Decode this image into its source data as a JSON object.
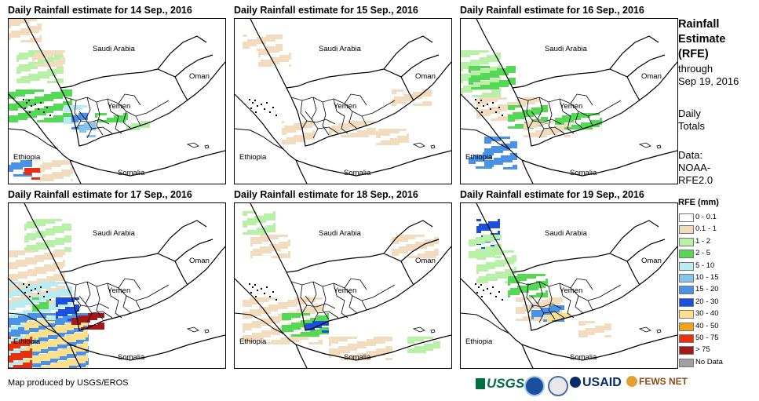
{
  "panels": [
    {
      "title": "Daily Rainfall estimate for 14 Sep., 2016"
    },
    {
      "title": "Daily Rainfall estimate for 15 Sep., 2016"
    },
    {
      "title": "Daily Rainfall estimate for 16 Sep., 2016"
    },
    {
      "title": "Daily Rainfall estimate for 17 Sep., 2016"
    },
    {
      "title": "Daily Rainfall estimate for 18 Sep., 2016"
    },
    {
      "title": "Daily Rainfall estimate for 19 Sep., 2016"
    }
  ],
  "map_labels": {
    "saudi": "Saudi Arabia",
    "oman": "Oman",
    "yemen": "Yemen",
    "ethiopia": "Ethiopia",
    "somalia": "Somalia"
  },
  "sidebar": {
    "title_lines": [
      "Rainfall",
      "Estimate",
      "(RFE)"
    ],
    "through": "through",
    "date": "Sep 19, 2016",
    "daily": "Daily",
    "totals": "Totals",
    "data_label": "Data:",
    "data_source_1": "NOAA-",
    "data_source_2": "RFE2.0"
  },
  "legend": {
    "title": "RFE (mm)",
    "items": [
      {
        "label": "0 - 0.1",
        "color": "#ffffff"
      },
      {
        "label": "0.1 - 1",
        "color": "#f2dcc0"
      },
      {
        "label": "1 - 2",
        "color": "#b9f0a8"
      },
      {
        "label": "2 - 5",
        "color": "#55d855"
      },
      {
        "label": "5 - 10",
        "color": "#b8ecf0"
      },
      {
        "label": "10 - 15",
        "color": "#86c3ee"
      },
      {
        "label": "15 - 20",
        "color": "#4a91e8"
      },
      {
        "label": "20 - 30",
        "color": "#1a4fe0"
      },
      {
        "label": "30 - 40",
        "color": "#ffe08a"
      },
      {
        "label": "40 - 50",
        "color": "#f2a31a"
      },
      {
        "label": "50 - 75",
        "color": "#e8300e"
      },
      {
        "label": "> 75",
        "color": "#a61818"
      },
      {
        "label": "No Data",
        "color": "#a0a0a0"
      }
    ]
  },
  "footer": "Map produced by USGS/EROS",
  "logos": {
    "usgs": "USGS",
    "usaid": "USAID",
    "fews": "FEWS NET"
  }
}
